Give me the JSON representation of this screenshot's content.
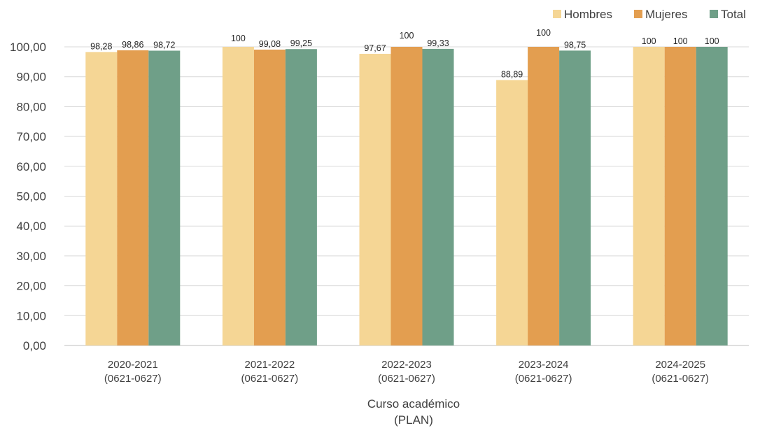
{
  "chart_data": {
    "type": "bar",
    "title": "",
    "xlabel_lines": [
      "Curso académico",
      "(PLAN)"
    ],
    "ylabel": "",
    "ylim": [
      0,
      100
    ],
    "ytick_step": 10,
    "ytick_labels": [
      "0,00",
      "10,00",
      "20,00",
      "30,00",
      "40,00",
      "50,00",
      "60,00",
      "70,00",
      "80,00",
      "90,00",
      "100,00"
    ],
    "grid": true,
    "legend_position": "top-right",
    "categories": [
      [
        "2020-2021",
        "(0621-0627)"
      ],
      [
        "2021-2022",
        "(0621-0627)"
      ],
      [
        "2022-2023",
        "(0621-0627)"
      ],
      [
        "2023-2024",
        "(0621-0627)"
      ],
      [
        "2024-2025",
        "(0621-0627)"
      ]
    ],
    "series": [
      {
        "name": "Hombres",
        "color": "#f5d695",
        "values": [
          98.28,
          100,
          97.67,
          88.89,
          100
        ],
        "labels": [
          "98,28",
          "100",
          "97,67",
          "88,89",
          "100"
        ]
      },
      {
        "name": "Mujeres",
        "color": "#e39e50",
        "values": [
          98.86,
          99.08,
          100,
          100,
          100
        ],
        "labels": [
          "98,86",
          "99,08",
          "100",
          "100",
          "100"
        ]
      },
      {
        "name": "Total",
        "color": "#6f9f88",
        "values": [
          98.72,
          99.25,
          99.33,
          98.75,
          100
        ],
        "labels": [
          "98,72",
          "99,25",
          "99,33",
          "98,75",
          "100"
        ]
      }
    ]
  }
}
